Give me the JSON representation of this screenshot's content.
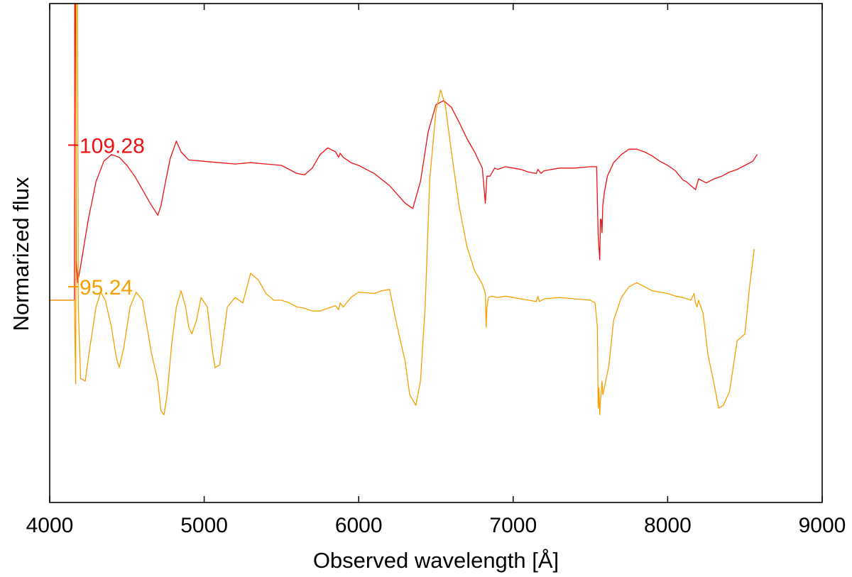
{
  "chart_data": {
    "type": "line",
    "xlabel": "Observed wavelength [Å]",
    "ylabel": "Normarized flux",
    "xlim": [
      4000,
      9000
    ],
    "ylim": [
      -0.6,
      3.1
    ],
    "x_ticks": [
      4000,
      5000,
      6000,
      7000,
      8000,
      9000
    ],
    "x_tick_labels": [
      "4000",
      "5000",
      "6000",
      "7000",
      "8000",
      "9000"
    ],
    "grid": false,
    "series": [
      {
        "label": "109.28",
        "label_value": 2.05,
        "color": "#ee1111",
        "x": [
          4000,
          4150,
          4160,
          4165,
          4168,
          4172,
          4180,
          4200,
          4250,
          4300,
          4350,
          4400,
          4450,
          4500,
          4550,
          4600,
          4650,
          4700,
          4720,
          4750,
          4780,
          4820,
          4850,
          4900,
          5000,
          5100,
          5200,
          5300,
          5400,
          5500,
          5600,
          5650,
          5700,
          5750,
          5800,
          5850,
          5870,
          5880,
          5900,
          5950,
          6000,
          6100,
          6200,
          6300,
          6350,
          6400,
          6450,
          6500,
          6550,
          6600,
          6650,
          6700,
          6750,
          6800,
          6820,
          6830,
          6850,
          6880,
          6900,
          6950,
          7000,
          7050,
          7100,
          7150,
          7160,
          7180,
          7200,
          7300,
          7400,
          7500,
          7540,
          7550,
          7560,
          7565,
          7570,
          7575,
          7580,
          7590,
          7610,
          7650,
          7700,
          7750,
          7800,
          7850,
          7900,
          7950,
          8000,
          8050,
          8100,
          8120,
          8150,
          8180,
          8200,
          8250,
          8300,
          8350,
          8400,
          8450,
          8500,
          8550,
          8580
        ],
        "y": [
          0.9,
          0.9,
          0.9,
          5.5,
          2.8,
          1.2,
          1.03,
          1.15,
          1.5,
          1.78,
          1.93,
          1.98,
          1.96,
          1.9,
          1.82,
          1.72,
          1.62,
          1.53,
          1.6,
          1.78,
          1.95,
          2.08,
          2.0,
          1.94,
          1.93,
          1.92,
          1.91,
          1.92,
          1.91,
          1.9,
          1.84,
          1.83,
          1.88,
          1.98,
          2.03,
          2.0,
          1.96,
          1.99,
          1.96,
          1.92,
          1.9,
          1.84,
          1.75,
          1.62,
          1.58,
          1.78,
          2.15,
          2.35,
          2.38,
          2.33,
          2.22,
          2.1,
          2.0,
          1.88,
          1.62,
          1.82,
          1.82,
          1.88,
          1.87,
          1.89,
          1.88,
          1.87,
          1.85,
          1.84,
          1.87,
          1.84,
          1.86,
          1.88,
          1.88,
          1.89,
          1.89,
          1.38,
          1.2,
          1.5,
          1.5,
          1.4,
          1.6,
          1.7,
          1.82,
          1.92,
          1.98,
          2.02,
          2.02,
          2.0,
          1.97,
          1.93,
          1.9,
          1.86,
          1.79,
          1.78,
          1.75,
          1.72,
          1.8,
          1.77,
          1.8,
          1.82,
          1.85,
          1.87,
          1.9,
          1.93,
          1.98
        ]
      },
      {
        "label": "95.24",
        "label_value": 1.0,
        "color": "#f5a000",
        "x": [
          4000,
          4150,
          4160,
          4168,
          4175,
          4185,
          4200,
          4230,
          4260,
          4300,
          4330,
          4360,
          4400,
          4430,
          4450,
          4480,
          4520,
          4560,
          4600,
          4630,
          4660,
          4700,
          4720,
          4740,
          4760,
          4790,
          4820,
          4850,
          4880,
          4900,
          4920,
          4950,
          4980,
          5020,
          5050,
          5070,
          5100,
          5150,
          5200,
          5250,
          5300,
          5350,
          5400,
          5450,
          5500,
          5550,
          5600,
          5650,
          5700,
          5750,
          5800,
          5850,
          5870,
          5880,
          5900,
          5950,
          6000,
          6100,
          6150,
          6200,
          6250,
          6300,
          6330,
          6370,
          6400,
          6430,
          6460,
          6500,
          6530,
          6560,
          6600,
          6650,
          6700,
          6750,
          6800,
          6820,
          6825,
          6830,
          6840,
          6860,
          6900,
          6950,
          7000,
          7050,
          7100,
          7150,
          7160,
          7170,
          7200,
          7300,
          7400,
          7500,
          7530,
          7545,
          7550,
          7555,
          7560,
          7565,
          7575,
          7580,
          7590,
          7620,
          7650,
          7700,
          7750,
          7800,
          7850,
          7900,
          7950,
          8000,
          8050,
          8100,
          8150,
          8170,
          8180,
          8190,
          8200,
          8230,
          8260,
          8300,
          8330,
          8360,
          8400,
          8430,
          8450,
          8500,
          8530,
          8560
        ],
        "y": [
          0.9,
          0.9,
          0.9,
          0.28,
          5.5,
          0.85,
          0.32,
          0.3,
          0.55,
          0.85,
          0.96,
          0.9,
          0.7,
          0.48,
          0.4,
          0.55,
          0.85,
          0.96,
          0.9,
          0.7,
          0.5,
          0.3,
          0.08,
          0.05,
          0.2,
          0.58,
          0.85,
          0.97,
          0.85,
          0.7,
          0.65,
          0.75,
          0.92,
          0.85,
          0.55,
          0.4,
          0.42,
          0.85,
          0.92,
          0.88,
          1.1,
          1.05,
          0.95,
          0.9,
          0.9,
          0.88,
          0.85,
          0.84,
          0.82,
          0.82,
          0.84,
          0.86,
          0.83,
          0.88,
          0.85,
          0.92,
          0.96,
          0.95,
          0.97,
          0.98,
          0.7,
          0.45,
          0.2,
          0.12,
          0.3,
          0.85,
          1.8,
          2.3,
          2.46,
          2.35,
          2.0,
          1.6,
          1.3,
          1.12,
          1.02,
          0.95,
          0.7,
          0.85,
          0.92,
          0.93,
          0.92,
          0.93,
          0.92,
          0.91,
          0.9,
          0.89,
          0.93,
          0.89,
          0.91,
          0.92,
          0.91,
          0.9,
          0.88,
          0.7,
          0.1,
          0.25,
          0.05,
          0.15,
          0.3,
          0.2,
          0.25,
          0.42,
          0.75,
          0.92,
          1.0,
          1.03,
          1.0,
          0.97,
          0.96,
          0.95,
          0.93,
          0.92,
          0.9,
          0.95,
          0.88,
          0.85,
          0.9,
          0.8,
          0.5,
          0.28,
          0.1,
          0.12,
          0.22,
          0.45,
          0.6,
          0.65,
          1.0,
          1.28
        ]
      }
    ]
  }
}
